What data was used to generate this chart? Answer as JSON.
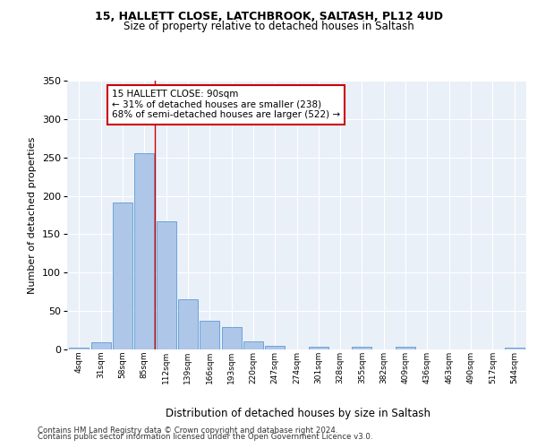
{
  "title_line1": "15, HALLETT CLOSE, LATCHBROOK, SALTASH, PL12 4UD",
  "title_line2": "Size of property relative to detached houses in Saltash",
  "xlabel": "Distribution of detached houses by size in Saltash",
  "ylabel": "Number of detached properties",
  "categories": [
    "4sqm",
    "31sqm",
    "58sqm",
    "85sqm",
    "112sqm",
    "139sqm",
    "166sqm",
    "193sqm",
    "220sqm",
    "247sqm",
    "274sqm",
    "301sqm",
    "328sqm",
    "355sqm",
    "382sqm",
    "409sqm",
    "436sqm",
    "463sqm",
    "490sqm",
    "517sqm",
    "544sqm"
  ],
  "bar_heights": [
    2,
    9,
    191,
    256,
    167,
    65,
    37,
    29,
    11,
    5,
    0,
    4,
    0,
    3,
    0,
    3,
    0,
    0,
    0,
    0,
    2
  ],
  "bar_color": "#aec6e8",
  "bar_edge_color": "#5b9bd5",
  "bg_color": "#eaf0f8",
  "grid_color": "#ffffff",
  "annotation_text": "15 HALLETT CLOSE: 90sqm\n← 31% of detached houses are smaller (238)\n68% of semi-detached houses are larger (522) →",
  "annotation_box_color": "#ffffff",
  "annotation_border_color": "#cc0000",
  "footnote1": "Contains HM Land Registry data © Crown copyright and database right 2024.",
  "footnote2": "Contains public sector information licensed under the Open Government Licence v3.0.",
  "ylim": [
    0,
    350
  ],
  "yticks": [
    0,
    50,
    100,
    150,
    200,
    250,
    300,
    350
  ],
  "red_line_x": 3.5
}
